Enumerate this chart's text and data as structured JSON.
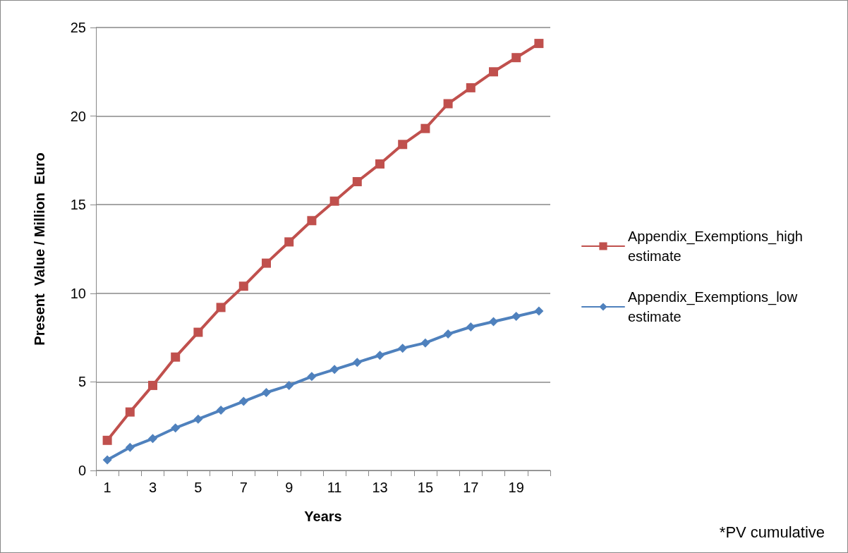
{
  "chart_data": {
    "type": "line",
    "xlabel": "Years",
    "ylabel": "Present  Value / Million  Euro",
    "x": [
      1,
      2,
      3,
      4,
      5,
      6,
      7,
      8,
      9,
      10,
      11,
      12,
      13,
      14,
      15,
      16,
      17,
      18,
      19,
      20
    ],
    "xlim": [
      0.5,
      20.5
    ],
    "xticks": [
      {
        "value": 0.5,
        "label": null
      },
      1,
      {
        "value": 1.5,
        "label": null
      },
      {
        "value": 2.5,
        "label": null
      },
      3,
      {
        "value": 3.5,
        "label": null
      },
      {
        "value": 4.5,
        "label": null
      },
      5,
      {
        "value": 5.5,
        "label": null
      },
      {
        "value": 6.5,
        "label": null
      },
      7,
      {
        "value": 7.5,
        "label": null
      },
      {
        "value": 8.5,
        "label": null
      },
      9,
      {
        "value": 9.5,
        "label": null
      },
      {
        "value": 10.5,
        "label": null
      },
      11,
      {
        "value": 11.5,
        "label": null
      },
      {
        "value": 12.5,
        "label": null
      },
      13,
      {
        "value": 13.5,
        "label": null
      },
      {
        "value": 14.5,
        "label": null
      },
      15,
      {
        "value": 15.5,
        "label": null
      },
      {
        "value": 16.5,
        "label": null
      },
      17,
      {
        "value": 17.5,
        "label": null
      },
      {
        "value": 18.5,
        "label": null
      },
      19,
      {
        "value": 19.5,
        "label": null
      },
      {
        "value": 20.5,
        "label": null
      }
    ],
    "series": [
      {
        "name": "Appendix_Exemptions_high estimate",
        "color": "#c0504d",
        "marker": "square",
        "values": [
          1.7,
          3.3,
          4.8,
          6.4,
          7.8,
          9.2,
          10.4,
          11.7,
          12.9,
          14.1,
          15.2,
          16.3,
          17.3,
          18.4,
          19.3,
          20.7,
          21.6,
          22.5,
          23.3,
          24.1
        ]
      },
      {
        "name": "Appendix_Exemptions_low estimate",
        "color": "#4f81bd",
        "marker": "diamond",
        "values": [
          0.6,
          1.3,
          1.8,
          2.4,
          2.9,
          3.4,
          3.9,
          4.4,
          4.8,
          5.3,
          5.7,
          6.1,
          6.5,
          6.9,
          7.2,
          7.7,
          8.1,
          8.4,
          8.7,
          9.0
        ]
      }
    ],
    "ylim": [
      0,
      25
    ],
    "yticks": [
      0,
      5,
      10,
      15,
      20,
      25
    ],
    "grid": "y",
    "legend": "right",
    "line_style": "solid",
    "annotations": [
      "*PV cumulative"
    ]
  }
}
